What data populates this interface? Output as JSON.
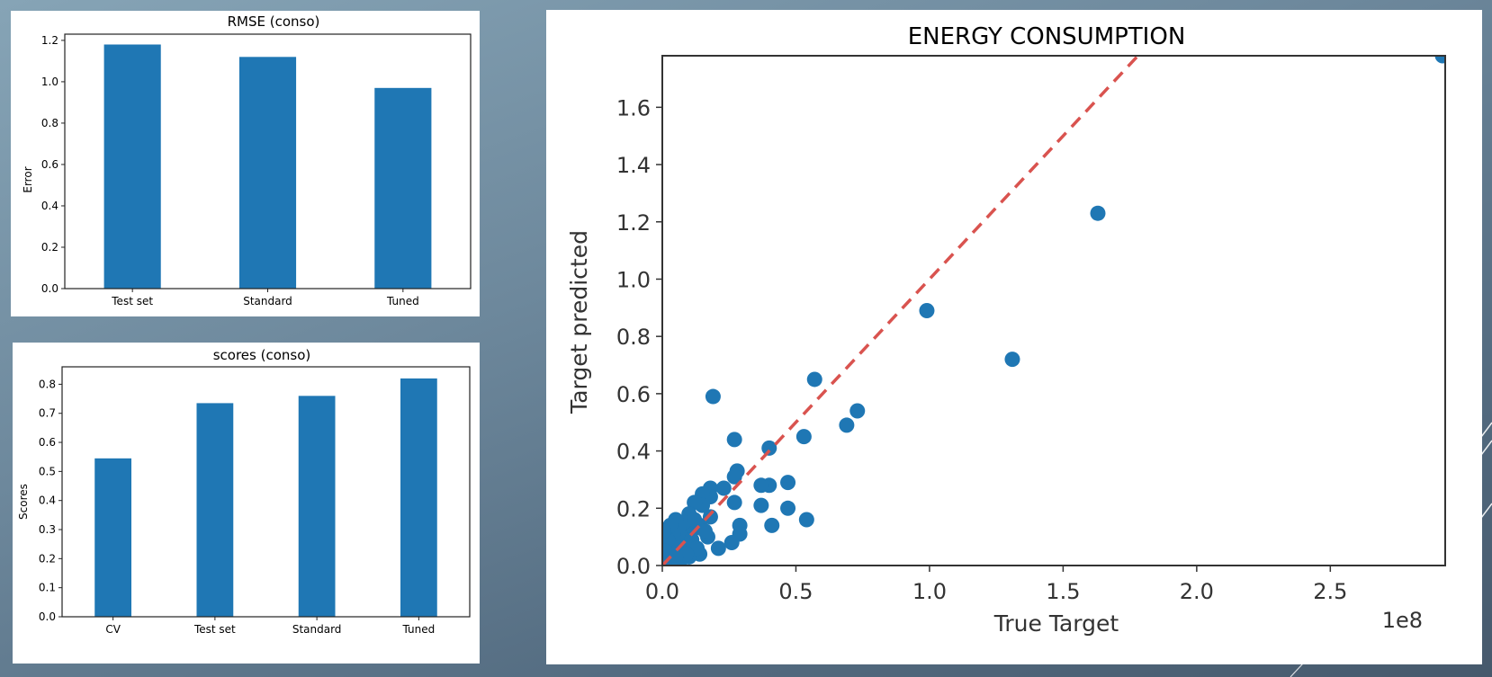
{
  "colors": {
    "bar": "#1f77b4",
    "point": "#1f77b4",
    "diagonal": "#d9534f"
  },
  "chart_data": [
    {
      "type": "bar",
      "title": "RMSE (conso)",
      "ylabel": "Error",
      "xlabel": "",
      "categories": [
        "Test set",
        "Standard",
        "Tuned"
      ],
      "values": [
        1.18,
        1.12,
        0.97
      ],
      "ylim": [
        0,
        1.23
      ],
      "yticks": [
        0.0,
        0.2,
        0.4,
        0.6,
        0.8,
        1.0,
        1.2
      ],
      "ytick_labels": [
        "0.0",
        "0.2",
        "0.4",
        "0.6",
        "0.8",
        "1.0",
        "1.2"
      ],
      "grid": false
    },
    {
      "type": "bar",
      "title": "scores (conso)",
      "ylabel": "Scores",
      "xlabel": "",
      "categories": [
        "CV",
        "Test set",
        "Standard",
        "Tuned"
      ],
      "values": [
        0.545,
        0.735,
        0.76,
        0.82
      ],
      "ylim": [
        0,
        0.86
      ],
      "yticks": [
        0.0,
        0.1,
        0.2,
        0.3,
        0.4,
        0.5,
        0.6,
        0.7,
        0.8
      ],
      "ytick_labels": [
        "0.0",
        "0.1",
        "0.2",
        "0.3",
        "0.4",
        "0.5",
        "0.6",
        "0.7",
        "0.8"
      ],
      "grid": false
    },
    {
      "type": "scatter",
      "title": "ENERGY CONSUMPTION",
      "xlabel": "True Target",
      "ylabel": "Target predicted",
      "x_scale_label": "1e8",
      "xlim": [
        0,
        2.93
      ],
      "ylim": [
        0,
        1.78
      ],
      "xticks": [
        0.0,
        0.5,
        1.0,
        1.5,
        2.0,
        2.5
      ],
      "xtick_labels": [
        "0.0",
        "0.5",
        "1.0",
        "1.5",
        "2.0",
        "2.5"
      ],
      "yticks": [
        0.0,
        0.2,
        0.4,
        0.6,
        0.8,
        1.0,
        1.2,
        1.4,
        1.6
      ],
      "ytick_labels": [
        "0.0",
        "0.2",
        "0.4",
        "0.6",
        "0.8",
        "1.0",
        "1.2",
        "1.4",
        "1.6"
      ],
      "diagonal": {
        "style": "dashed",
        "from": [
          0,
          0
        ],
        "to": [
          1.78,
          1.78
        ]
      },
      "grid": false,
      "points": [
        [
          2.92,
          1.78
        ],
        [
          1.63,
          1.23
        ],
        [
          1.31,
          0.72
        ],
        [
          0.99,
          0.89
        ],
        [
          0.73,
          0.54
        ],
        [
          0.69,
          0.49
        ],
        [
          0.57,
          0.65
        ],
        [
          0.53,
          0.45
        ],
        [
          0.54,
          0.16
        ],
        [
          0.47,
          0.2
        ],
        [
          0.47,
          0.29
        ],
        [
          0.41,
          0.14
        ],
        [
          0.4,
          0.41
        ],
        [
          0.4,
          0.28
        ],
        [
          0.37,
          0.28
        ],
        [
          0.37,
          0.21
        ],
        [
          0.29,
          0.14
        ],
        [
          0.29,
          0.11
        ],
        [
          0.28,
          0.33
        ],
        [
          0.27,
          0.44
        ],
        [
          0.27,
          0.31
        ],
        [
          0.27,
          0.22
        ],
        [
          0.26,
          0.08
        ],
        [
          0.23,
          0.27
        ],
        [
          0.21,
          0.06
        ],
        [
          0.19,
          0.59
        ],
        [
          0.18,
          0.27
        ],
        [
          0.18,
          0.24
        ],
        [
          0.18,
          0.17
        ],
        [
          0.17,
          0.1
        ],
        [
          0.15,
          0.25
        ],
        [
          0.15,
          0.21
        ],
        [
          0.14,
          0.14
        ],
        [
          0.14,
          0.04
        ],
        [
          0.12,
          0.22
        ],
        [
          0.12,
          0.13
        ],
        [
          0.1,
          0.18
        ],
        [
          0.1,
          0.08
        ],
        [
          0.1,
          0.03
        ],
        [
          0.09,
          0.12
        ],
        [
          0.08,
          0.15
        ],
        [
          0.08,
          0.06
        ],
        [
          0.07,
          0.1
        ],
        [
          0.06,
          0.13
        ],
        [
          0.06,
          0.04
        ],
        [
          0.05,
          0.08
        ],
        [
          0.05,
          0.16
        ],
        [
          0.04,
          0.02
        ],
        [
          0.04,
          0.11
        ],
        [
          0.03,
          0.06
        ],
        [
          0.03,
          0.14
        ],
        [
          0.02,
          0.03
        ],
        [
          0.02,
          0.09
        ],
        [
          0.01,
          0.01
        ],
        [
          0.01,
          0.05
        ],
        [
          0.005,
          0.12
        ],
        [
          0.11,
          0.09
        ],
        [
          0.13,
          0.06
        ],
        [
          0.16,
          0.12
        ],
        [
          0.07,
          0.02
        ],
        [
          0.09,
          0.04
        ],
        [
          0.12,
          0.16
        ],
        [
          0.03,
          0.0
        ],
        [
          0.05,
          0.03
        ]
      ]
    }
  ]
}
